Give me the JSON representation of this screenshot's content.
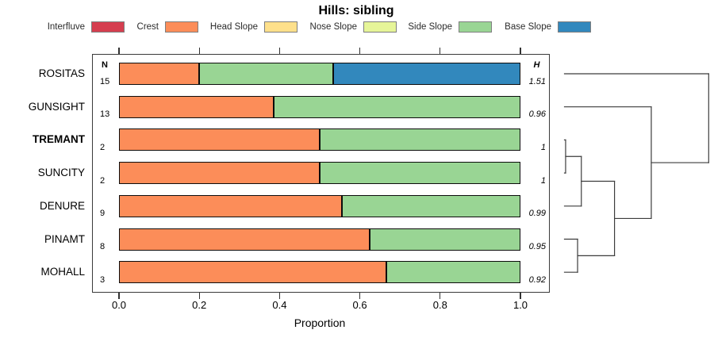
{
  "title": "Hills: sibling",
  "columns": {
    "n_header": "N",
    "h_header": "H"
  },
  "legend": {
    "items": [
      {
        "label": "Interfluve",
        "color": "#d53e4f"
      },
      {
        "label": "Crest",
        "color": "#fc8d59"
      },
      {
        "label": "Head Slope",
        "color": "#fee08b"
      },
      {
        "label": "Nose Slope",
        "color": "#e6f598"
      },
      {
        "label": "Side Slope",
        "color": "#99d594"
      },
      {
        "label": "Base Slope",
        "color": "#3288bd"
      }
    ]
  },
  "chart_data": {
    "type": "bar",
    "orientation": "horizontal",
    "stacked": true,
    "title": "Hills: sibling",
    "xlabel": "Proportion",
    "xlim": [
      0,
      1
    ],
    "x_ticks": [
      {
        "label": "0.0",
        "value": 0.0
      },
      {
        "label": "0.2",
        "value": 0.2
      },
      {
        "label": "0.4",
        "value": 0.4
      },
      {
        "label": "0.6",
        "value": 0.6
      },
      {
        "label": "0.8",
        "value": 0.8
      },
      {
        "label": "1.0",
        "value": 1.0
      }
    ],
    "categories": [
      "Interfluve",
      "Crest",
      "Head Slope",
      "Nose Slope",
      "Side Slope",
      "Base Slope"
    ],
    "palette": {
      "Interfluve": "#d53e4f",
      "Crest": "#fc8d59",
      "Head Slope": "#fee08b",
      "Nose Slope": "#e6f598",
      "Side Slope": "#99d594",
      "Base Slope": "#3288bd"
    },
    "rows": [
      {
        "name": "ROSITAS",
        "bold": false,
        "n": 15,
        "h": "1.51",
        "segments": [
          {
            "category": "Crest",
            "value": 0.2
          },
          {
            "category": "Side Slope",
            "value": 0.3333
          },
          {
            "category": "Base Slope",
            "value": 0.4667
          }
        ]
      },
      {
        "name": "GUNSIGHT",
        "bold": false,
        "n": 13,
        "h": "0.96",
        "segments": [
          {
            "category": "Crest",
            "value": 0.3846
          },
          {
            "category": "Side Slope",
            "value": 0.6154
          }
        ]
      },
      {
        "name": "TREMANT",
        "bold": true,
        "n": 2,
        "h": "1",
        "segments": [
          {
            "category": "Crest",
            "value": 0.5
          },
          {
            "category": "Side Slope",
            "value": 0.5
          }
        ]
      },
      {
        "name": "SUNCITY",
        "bold": false,
        "n": 2,
        "h": "1",
        "segments": [
          {
            "category": "Crest",
            "value": 0.5
          },
          {
            "category": "Side Slope",
            "value": 0.5
          }
        ]
      },
      {
        "name": "DENURE",
        "bold": false,
        "n": 9,
        "h": "0.99",
        "segments": [
          {
            "category": "Crest",
            "value": 0.5556
          },
          {
            "category": "Side Slope",
            "value": 0.4444
          }
        ]
      },
      {
        "name": "PINAMT",
        "bold": false,
        "n": 8,
        "h": "0.95",
        "segments": [
          {
            "category": "Crest",
            "value": 0.625
          },
          {
            "category": "Side Slope",
            "value": 0.375
          }
        ]
      },
      {
        "name": "MOHALL",
        "bold": false,
        "n": 3,
        "h": "0.92",
        "segments": [
          {
            "category": "Crest",
            "value": 0.6667
          },
          {
            "category": "Side Slope",
            "value": 0.3333
          }
        ]
      }
    ],
    "dendrogram": {
      "leaf_order": [
        "ROSITAS",
        "GUNSIGHT",
        "TREMANT",
        "SUNCITY",
        "DENURE",
        "PINAMT",
        "MOHALL"
      ],
      "merges": [
        {
          "a": "TREMANT",
          "b": "SUNCITY",
          "height": 0.008
        },
        {
          "a": "PINAMT",
          "b": "MOHALL",
          "height": 0.091
        },
        {
          "a": "M0",
          "b": "DENURE",
          "height": 0.117
        },
        {
          "a": "M2",
          "b": "M1",
          "height": 0.347
        },
        {
          "a": "GUNSIGHT",
          "b": "M3",
          "height": 0.602
        },
        {
          "a": "ROSITAS",
          "b": "M4",
          "height": 1.0
        }
      ]
    }
  }
}
